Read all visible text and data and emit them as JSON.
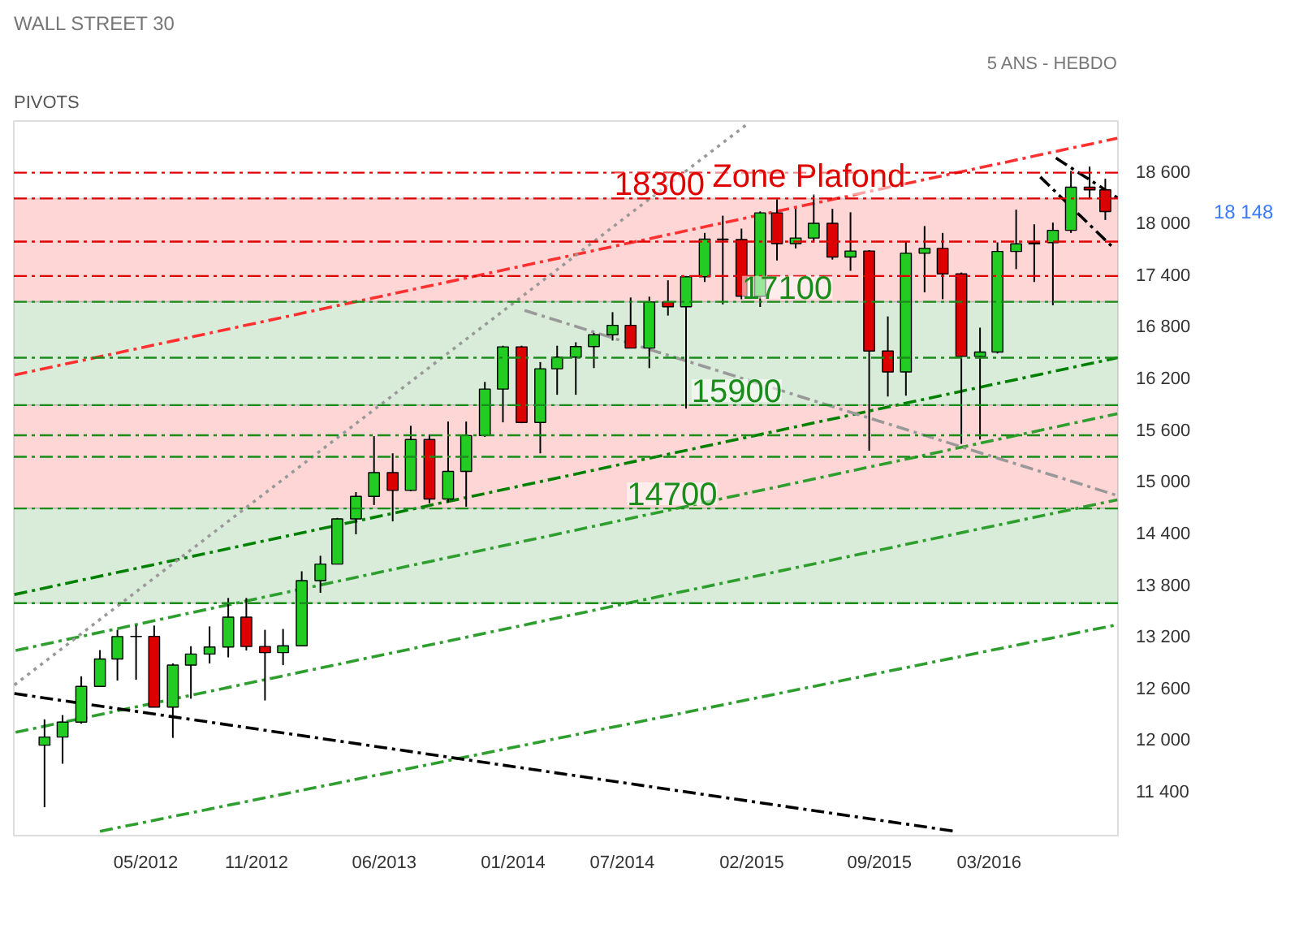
{
  "chart_data": {
    "type": "candlestick",
    "title": "WALL STREET 30",
    "subtitle": "5 ANS - HEBDO",
    "annotations": [
      "PIVOTS",
      "18 148",
      {
        "text": "18300",
        "x": "2014-09-01",
        "y": 18300
      },
      {
        "text": "Zone Plafond",
        "x": "2015-05-07",
        "y": 18300
      },
      {
        "text": "17100",
        "x": "2015-04-01",
        "y": 17100
      },
      {
        "text": "15900",
        "x": "2015-01-07",
        "y": 15900
      },
      {
        "text": "14700",
        "x": "2014-09-22",
        "y": 14700
      }
    ],
    "x": [
      "2011-11-15",
      "2011-12-15",
      "2012-01-15",
      "2012-02-15",
      "2012-03-15",
      "2012-04-15",
      "2012-05-15",
      "2012-06-15",
      "2012-07-15",
      "2012-08-15",
      "2012-09-15",
      "2012-10-15",
      "2012-11-15",
      "2012-12-15",
      "2013-01-15",
      "2013-02-15",
      "2013-03-15",
      "2013-04-15",
      "2013-05-15",
      "2013-06-15",
      "2013-07-15",
      "2013-08-15",
      "2013-09-15",
      "2013-10-15",
      "2013-11-15",
      "2013-12-15",
      "2014-01-15",
      "2014-02-15",
      "2014-03-15",
      "2014-04-15",
      "2014-05-15",
      "2014-06-15",
      "2014-07-15",
      "2014-08-15",
      "2014-09-15",
      "2014-10-15",
      "2014-11-15",
      "2014-12-15",
      "2015-01-15",
      "2015-02-15",
      "2015-03-15",
      "2015-04-15",
      "2015-05-15",
      "2015-06-15",
      "2015-07-15",
      "2015-08-15",
      "2015-09-15",
      "2015-10-15",
      "2015-11-15",
      "2015-12-15",
      "2016-01-15",
      "2016-02-15",
      "2016-03-15",
      "2016-04-15",
      "2016-05-15",
      "2016-06-15",
      "2016-07-15",
      "2016-08-15",
      "2016-09-10"
    ],
    "ohlc": [
      [
        11950,
        12250,
        11230,
        12045
      ],
      [
        12045,
        12300,
        11735,
        12218
      ],
      [
        12218,
        12750,
        12200,
        12633
      ],
      [
        12633,
        13055,
        12630,
        12952
      ],
      [
        12952,
        13290,
        12700,
        13212
      ],
      [
        13212,
        13340,
        12710,
        13214
      ],
      [
        13214,
        13340,
        12390,
        12393
      ],
      [
        12393,
        12900,
        12035,
        12880
      ],
      [
        12880,
        13100,
        12490,
        13009
      ],
      [
        13009,
        13330,
        12900,
        13091
      ],
      [
        13091,
        13660,
        12970,
        13437
      ],
      [
        13437,
        13660,
        13050,
        13096
      ],
      [
        13096,
        13290,
        12470,
        13026
      ],
      [
        13026,
        13300,
        12880,
        13104
      ],
      [
        13104,
        13970,
        13100,
        13861
      ],
      [
        13861,
        14150,
        13720,
        14054
      ],
      [
        14054,
        14590,
        14050,
        14579
      ],
      [
        14579,
        14890,
        14400,
        14840
      ],
      [
        14840,
        15540,
        14740,
        15116
      ],
      [
        15116,
        15340,
        14550,
        14910
      ],
      [
        14910,
        15660,
        14900,
        15500
      ],
      [
        15500,
        15560,
        14760,
        14810
      ],
      [
        14810,
        15710,
        14770,
        15130
      ],
      [
        15130,
        15710,
        14720,
        15546
      ],
      [
        15546,
        16170,
        15530,
        16086
      ],
      [
        16086,
        16590,
        15700,
        16577
      ],
      [
        16577,
        16590,
        15690,
        15699
      ],
      [
        15699,
        16400,
        15340,
        16322
      ],
      [
        16322,
        16590,
        16020,
        16458
      ],
      [
        16458,
        16630,
        16020,
        16581
      ],
      [
        16581,
        16740,
        16330,
        16717
      ],
      [
        16717,
        16980,
        16650,
        16827
      ],
      [
        16827,
        17150,
        16560,
        16563
      ],
      [
        16563,
        17160,
        16330,
        17098
      ],
      [
        17098,
        17350,
        16940,
        17043
      ],
      [
        17043,
        17400,
        15860,
        17391
      ],
      [
        17391,
        17900,
        17330,
        17828
      ],
      [
        17828,
        18100,
        17070,
        17823
      ],
      [
        17823,
        17950,
        17130,
        17165
      ],
      [
        17165,
        18150,
        17040,
        18133
      ],
      [
        18133,
        18290,
        17580,
        17776
      ],
      [
        17776,
        18180,
        17720,
        17841
      ],
      [
        17841,
        18350,
        17790,
        18011
      ],
      [
        18011,
        18180,
        17590,
        17620
      ],
      [
        17620,
        18140,
        17460,
        17690
      ],
      [
        17690,
        17700,
        15370,
        16528
      ],
      [
        16528,
        16930,
        16000,
        16285
      ],
      [
        16285,
        17800,
        16010,
        17664
      ],
      [
        17664,
        17980,
        17210,
        17720
      ],
      [
        17720,
        17900,
        17130,
        17425
      ],
      [
        17425,
        17440,
        15450,
        16466
      ],
      [
        16466,
        16800,
        15500,
        16517
      ],
      [
        16517,
        17790,
        16500,
        17685
      ],
      [
        17685,
        18170,
        17480,
        17774
      ],
      [
        17774,
        18000,
        17330,
        17787
      ],
      [
        17787,
        18020,
        17060,
        17930
      ],
      [
        17930,
        18620,
        17900,
        18432
      ],
      [
        18432,
        18670,
        18300,
        18400
      ],
      [
        18400,
        18530,
        18050,
        18148
      ]
    ],
    "colors": [
      "#22cc22",
      "#22cc22",
      "#22cc22",
      "#22cc22",
      "#22cc22",
      "#22cc22",
      "#dd0000",
      "#22cc22",
      "#22cc22",
      "#22cc22",
      "#22cc22",
      "#dd0000",
      "#dd0000",
      "#22cc22",
      "#22cc22",
      "#22cc22",
      "#22cc22",
      "#22cc22",
      "#22cc22",
      "#dd0000",
      "#22cc22",
      "#dd0000",
      "#22cc22",
      "#22cc22",
      "#22cc22",
      "#22cc22",
      "#dd0000",
      "#22cc22",
      "#22cc22",
      "#22cc22",
      "#22cc22",
      "#22cc22",
      "#dd0000",
      "#22cc22",
      "#dd0000",
      "#22cc22",
      "#22cc22",
      "#dd0000",
      "#dd0000",
      "#22cc22",
      "#dd0000",
      "#22cc22",
      "#22cc22",
      "#dd0000",
      "#22cc22",
      "#dd0000",
      "#dd0000",
      "#22cc22",
      "#22cc22",
      "#dd0000",
      "#dd0000",
      "#22cc22",
      "#22cc22",
      "#22cc22",
      "#22cc22",
      "#22cc22",
      "#22cc22",
      "#dd0000",
      "#dd0000"
    ],
    "series": [
      {
        "type": "line",
        "x": [
          "2011-09-26",
          "2016-09-30"
        ],
        "values": [
          13700,
          16450
        ],
        "color": "#008000",
        "line_style": "dashed"
      },
      {
        "type": "line",
        "x": [
          "2011-09-26",
          "2016-09-30"
        ],
        "values": [
          16250,
          19000
        ],
        "color": "#ff3030",
        "line_style": "dashed"
      },
      {
        "type": "line",
        "x": [
          "2011-09-28",
          "2016-09-30"
        ],
        "values": [
          13050,
          15800
        ],
        "color": "#2e9e2e",
        "line_style": "dashed"
      },
      {
        "type": "line",
        "x": [
          "2011-09-28",
          "2016-09-30"
        ],
        "values": [
          12100,
          14800
        ],
        "color": "#2e9e2e",
        "line_style": "dashed"
      },
      {
        "type": "line",
        "x": [
          "2012-02-15",
          "2016-09-30"
        ],
        "values": [
          10950,
          13350
        ],
        "color": "#2e9e2e",
        "line_style": "dashed"
      },
      {
        "type": "line",
        "x": [
          "2011-09-26",
          "2016-01-05"
        ],
        "values": [
          12550,
          10950
        ],
        "color": "#000000",
        "line_style": "dashed"
      },
      {
        "type": "line",
        "x": [
          "2011-09-26",
          "2015-01-22"
        ],
        "values": [
          12650,
          19150
        ],
        "color": "#999999",
        "line_style": "dotted"
      },
      {
        "type": "line",
        "x": [
          "2014-01-20",
          "2016-09-30"
        ],
        "values": [
          17000,
          14850
        ],
        "color": "#999999",
        "line_style": "dashed"
      },
      {
        "type": "line",
        "x": [
          "2016-06-20",
          "2016-09-30"
        ],
        "values": [
          18770,
          18310
        ],
        "color": "#000000",
        "line_style": "dashed"
      },
      {
        "type": "line",
        "x": [
          "2016-05-25",
          "2016-09-20"
        ],
        "values": [
          18550,
          17750
        ],
        "color": "#000000",
        "line_style": "dashed"
      }
    ],
    "ref_lines": [
      {
        "axis": "y",
        "value": 18600,
        "color": "#e00000",
        "line_style": "dashed"
      },
      {
        "axis": "y",
        "value": 18300,
        "color": "#e00000",
        "line_style": "dashed"
      },
      {
        "axis": "y",
        "value": 17800,
        "color": "#e00000",
        "line_style": "dashed"
      },
      {
        "axis": "y",
        "value": 17400,
        "color": "#e00000",
        "line_style": "dashed"
      },
      {
        "axis": "y",
        "value": 17100,
        "color": "#1a8c1a",
        "line_style": "dashed"
      },
      {
        "axis": "y",
        "value": 16450,
        "color": "#1a8c1a",
        "line_style": "dashed"
      },
      {
        "axis": "y",
        "value": 15900,
        "color": "#1a8c1a",
        "line_style": "dashed"
      },
      {
        "axis": "y",
        "value": 15550,
        "color": "#1a8c1a",
        "line_style": "dashed"
      },
      {
        "axis": "y",
        "value": 15300,
        "color": "#1a8c1a",
        "line_style": "dashed"
      },
      {
        "axis": "y",
        "value": 14700,
        "color": "#1a8c1a",
        "line_style": "dashed"
      },
      {
        "axis": "y",
        "value": 13600,
        "color": "#1a8c1a",
        "line_style": "dashed"
      }
    ],
    "bands": [
      {
        "axis": "y",
        "from": 17100,
        "to": 18300,
        "color": "#ffd6d6"
      },
      {
        "axis": "y",
        "from": 15900,
        "to": 17100,
        "color": "#d9ecd9"
      },
      {
        "axis": "y",
        "from": 14700,
        "to": 15900,
        "color": "#ffd6d6"
      },
      {
        "axis": "y",
        "from": 13600,
        "to": 14700,
        "color": "#d9ecd9"
      }
    ],
    "xlim": [
      "2011-09-25",
      "2016-10-01"
    ],
    "xticks": [
      {
        "value": "2012-05-01",
        "label": "05/2012"
      },
      {
        "value": "2012-11-01",
        "label": "11/2012"
      },
      {
        "value": "2013-06-01",
        "label": "06/2013"
      },
      {
        "value": "2014-01-01",
        "label": "01/2014"
      },
      {
        "value": "2014-07-01",
        "label": "07/2014"
      },
      {
        "value": "2015-02-01",
        "label": "02/2015"
      },
      {
        "value": "2015-09-01",
        "label": "09/2015"
      },
      {
        "value": "2016-03-01",
        "label": "03/2016"
      }
    ],
    "ylim": [
      10900,
      19200
    ],
    "yticks": [
      {
        "value": 11400,
        "label": "11 400"
      },
      {
        "value": 12000,
        "label": "12 000"
      },
      {
        "value": 12600,
        "label": "12 600"
      },
      {
        "value": 13200,
        "label": "13 200"
      },
      {
        "value": 13800,
        "label": "13 800"
      },
      {
        "value": 14400,
        "label": "14 400"
      },
      {
        "value": 15000,
        "label": "15 000"
      },
      {
        "value": 15600,
        "label": "15 600"
      },
      {
        "value": 16200,
        "label": "16 200"
      },
      {
        "value": 16800,
        "label": "16 800"
      },
      {
        "value": 17400,
        "label": "17 400"
      },
      {
        "value": 18000,
        "label": "18 000"
      },
      {
        "value": 18600,
        "label": "18 600"
      }
    ],
    "grid": false
  }
}
